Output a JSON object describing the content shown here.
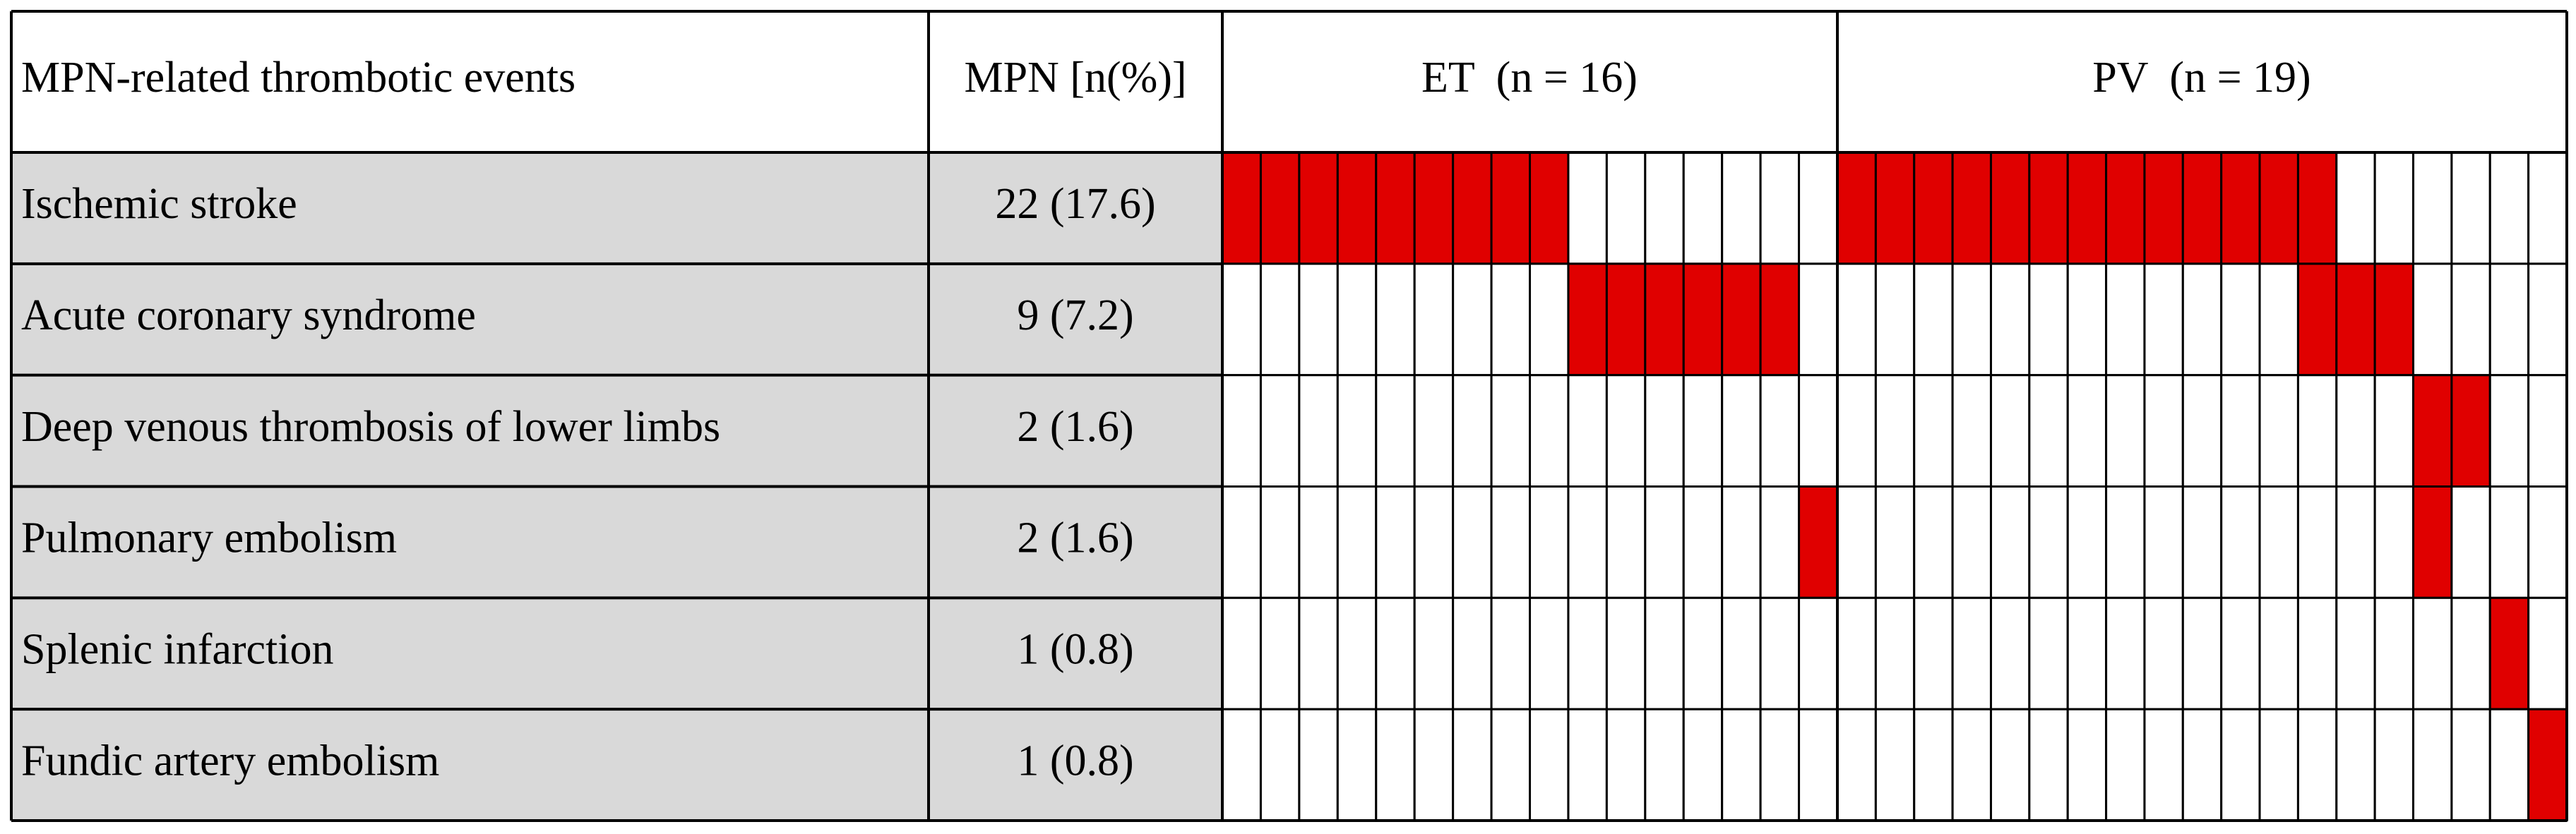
{
  "header": {
    "event": "MPN-related thrombotic events",
    "mpn": "MPN [n(%)]",
    "et": "ET  (n = 16)",
    "pv": "PV  (n = 19)"
  },
  "rows": [
    {
      "event": "Ischemic stroke",
      "mpn": "22 (17.6)",
      "et": [
        1,
        1,
        1,
        1,
        1,
        1,
        1,
        1,
        1,
        0,
        0,
        0,
        0,
        0,
        0,
        0
      ],
      "pv": [
        1,
        1,
        1,
        1,
        1,
        1,
        1,
        1,
        1,
        1,
        1,
        1,
        1,
        0,
        0,
        0,
        0,
        0,
        0
      ]
    },
    {
      "event": "Acute coronary syndrome",
      "mpn": "9 (7.2)",
      "et": [
        0,
        0,
        0,
        0,
        0,
        0,
        0,
        0,
        0,
        1,
        1,
        1,
        1,
        1,
        1,
        0
      ],
      "pv": [
        0,
        0,
        0,
        0,
        0,
        0,
        0,
        0,
        0,
        0,
        0,
        0,
        1,
        1,
        1,
        0,
        0,
        0,
        0
      ]
    },
    {
      "event": "Deep venous thrombosis of lower limbs",
      "mpn": "2 (1.6)",
      "et": [
        0,
        0,
        0,
        0,
        0,
        0,
        0,
        0,
        0,
        0,
        0,
        0,
        0,
        0,
        0,
        0
      ],
      "pv": [
        0,
        0,
        0,
        0,
        0,
        0,
        0,
        0,
        0,
        0,
        0,
        0,
        0,
        0,
        0,
        1,
        1,
        0,
        0
      ]
    },
    {
      "event": "Pulmonary embolism",
      "mpn": "2 (1.6)",
      "et": [
        0,
        0,
        0,
        0,
        0,
        0,
        0,
        0,
        0,
        0,
        0,
        0,
        0,
        0,
        0,
        1
      ],
      "pv": [
        0,
        0,
        0,
        0,
        0,
        0,
        0,
        0,
        0,
        0,
        0,
        0,
        0,
        0,
        0,
        1,
        0,
        0,
        0
      ]
    },
    {
      "event": "Splenic infarction",
      "mpn": "1 (0.8)",
      "et": [
        0,
        0,
        0,
        0,
        0,
        0,
        0,
        0,
        0,
        0,
        0,
        0,
        0,
        0,
        0,
        0
      ],
      "pv": [
        0,
        0,
        0,
        0,
        0,
        0,
        0,
        0,
        0,
        0,
        0,
        0,
        0,
        0,
        0,
        0,
        0,
        1,
        0
      ]
    },
    {
      "event": "Fundic artery embolism",
      "mpn": "1 (0.8)",
      "et": [
        0,
        0,
        0,
        0,
        0,
        0,
        0,
        0,
        0,
        0,
        0,
        0,
        0,
        0,
        0,
        0
      ],
      "pv": [
        0,
        0,
        0,
        0,
        0,
        0,
        0,
        0,
        0,
        0,
        0,
        0,
        0,
        0,
        0,
        0,
        0,
        0,
        1
      ]
    }
  ]
}
